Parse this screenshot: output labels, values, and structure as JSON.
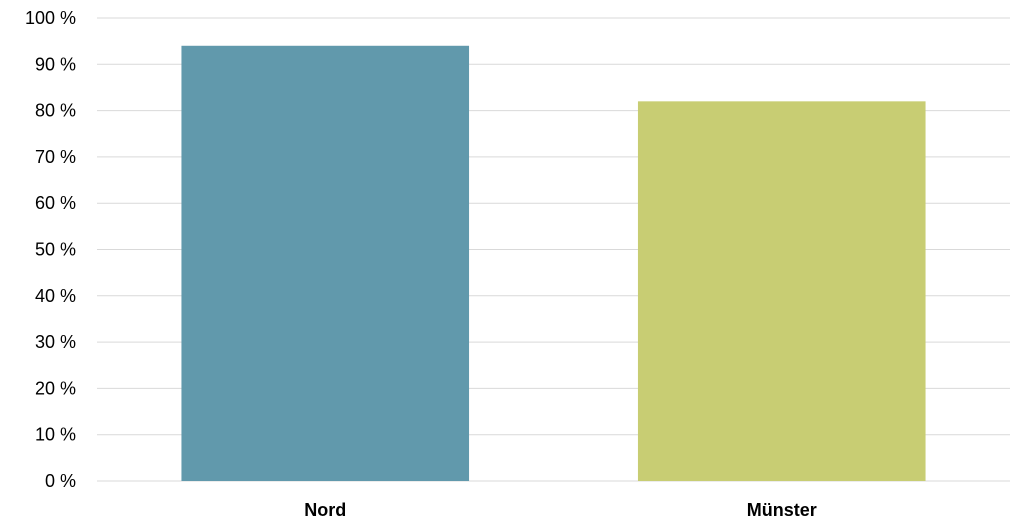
{
  "chart_data": {
    "type": "bar",
    "categories": [
      "Nord",
      "Münster"
    ],
    "values": [
      94,
      82
    ],
    "colors": [
      "#6199ac",
      "#c8cd73"
    ],
    "yticks": [
      0,
      10,
      20,
      30,
      40,
      50,
      60,
      70,
      80,
      90,
      100
    ],
    "ytick_suffix": " %",
    "ylim": [
      0,
      100
    ],
    "grid": true,
    "title": "",
    "xlabel": "",
    "ylabel": ""
  }
}
